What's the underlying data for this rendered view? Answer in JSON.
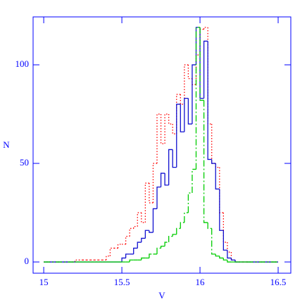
{
  "chart_data": {
    "type": "histogram",
    "xlabel": "V",
    "ylabel": "N",
    "bins": [
      15,
      15.2,
      15.225,
      15.25,
      15.275,
      15.3,
      15.325,
      15.35,
      15.375,
      15.4,
      15.425,
      15.45,
      15.475,
      15.5,
      15.525,
      15.55,
      15.575,
      15.6,
      15.625,
      15.65,
      15.675,
      15.7,
      15.725,
      15.75,
      15.775,
      15.8,
      15.825,
      15.85,
      15.875,
      15.9,
      15.925,
      15.95,
      15.975,
      16,
      16.025,
      16.05,
      16.075,
      16.1,
      16.125,
      16.15,
      16.175,
      16.2,
      16.225,
      16.25,
      16.275,
      16.3,
      16.5
    ],
    "series": [
      {
        "color": "#ff0000",
        "dash": "1.5,2.5",
        "values": [
          0,
          1,
          1,
          1,
          1,
          1,
          1,
          1,
          1,
          3,
          7,
          7,
          9,
          9,
          13,
          17,
          18,
          25,
          20,
          40,
          30,
          50,
          75,
          60,
          75,
          70,
          65,
          85,
          80,
          100,
          93,
          90,
          105,
          118,
          119,
          70,
          50,
          48,
          25,
          10,
          5,
          1,
          0,
          0,
          0,
          0
        ]
      },
      {
        "color": "#1010d0",
        "dash": "none",
        "values": [
          0,
          0,
          0,
          0,
          0,
          0,
          0,
          0,
          0,
          0,
          0,
          0,
          0,
          2,
          4,
          4,
          7,
          10,
          12,
          16,
          15,
          27,
          38,
          45,
          39,
          57,
          48,
          80,
          66,
          83,
          70,
          100,
          119,
          83,
          112,
          52,
          50,
          37,
          16,
          6,
          2,
          1,
          0,
          0,
          0,
          0
        ]
      },
      {
        "color": "#00cc00",
        "dash": "9,3,2,3",
        "values": [
          0,
          0,
          0,
          0,
          0,
          0,
          0,
          0,
          0,
          0,
          0,
          0,
          0,
          0,
          0,
          1,
          1,
          1,
          2,
          2,
          4,
          4,
          7,
          8,
          10,
          13,
          14,
          17,
          20,
          25,
          35,
          47,
          119,
          82,
          20,
          17,
          4,
          3,
          2,
          1,
          0,
          0,
          0,
          0,
          0,
          0
        ]
      }
    ],
    "xlim": [
      14.932,
      16.581
    ],
    "xticks": [
      15,
      15.5,
      16,
      16.5
    ],
    "ylim": [
      -5.7,
      124.3
    ],
    "yticks": [
      0,
      50,
      100
    ],
    "axis_color": "#0000ff"
  }
}
